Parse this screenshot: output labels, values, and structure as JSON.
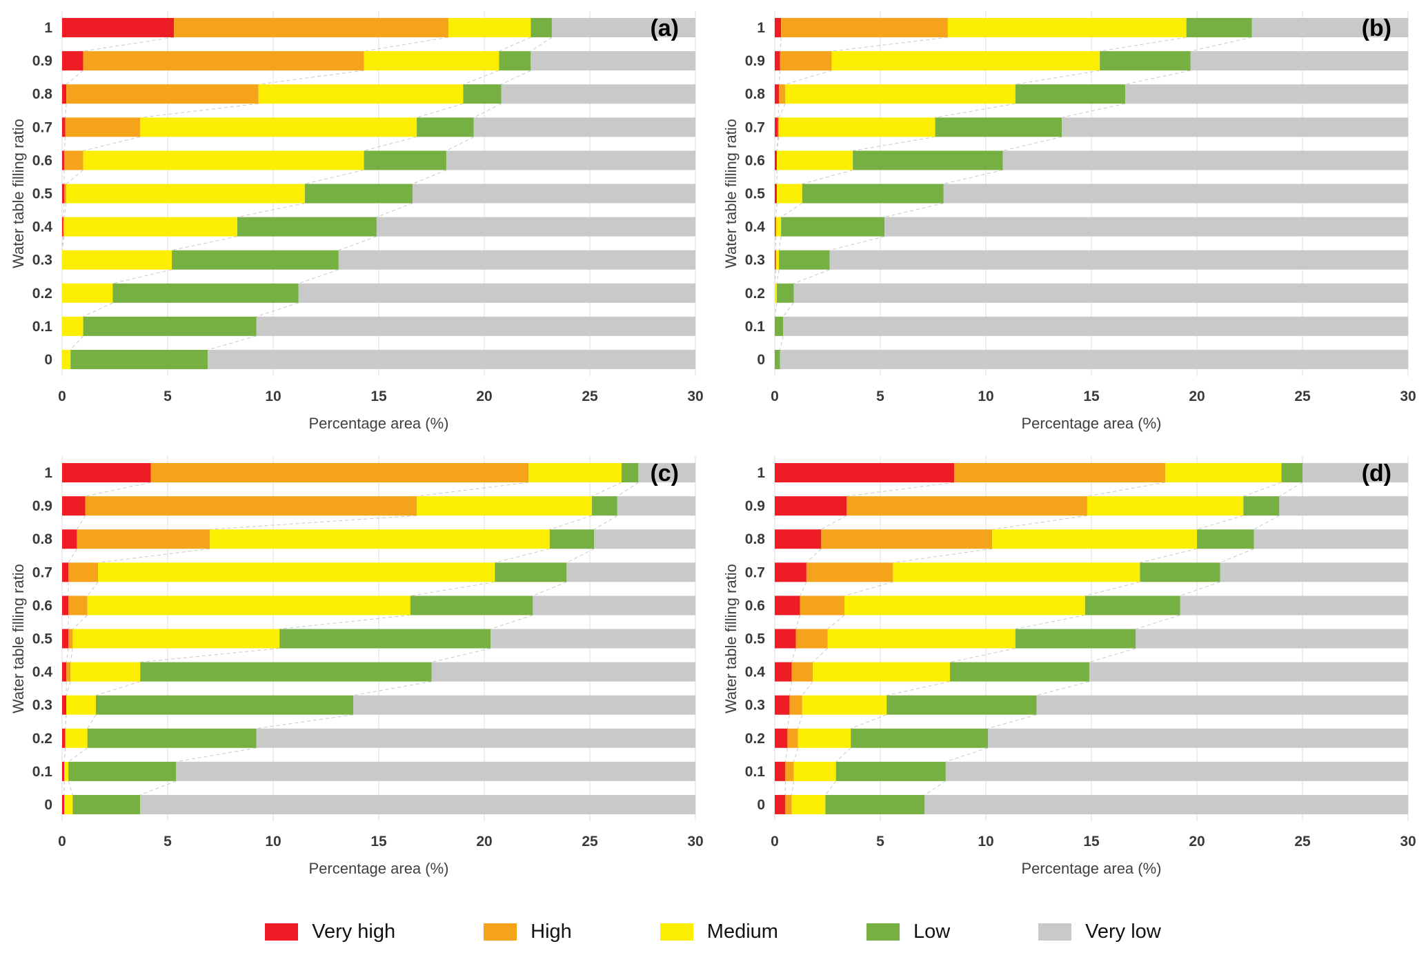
{
  "figure": {
    "background": "#ffffff"
  },
  "legend": {
    "items": [
      {
        "label": "Very high",
        "color": "#ee1c25"
      },
      {
        "label": "High",
        "color": "#f5a31b"
      },
      {
        "label": "Medium",
        "color": "#fbee00"
      },
      {
        "label": "Low",
        "color": "#76b043"
      },
      {
        "label": "Very low",
        "color": "#c9c9c9"
      }
    ]
  },
  "chart_data": [
    {
      "id": "a",
      "panel_label": "(a)",
      "type": "bar",
      "orientation": "horizontal-stacked",
      "title": "",
      "xlabel": "Percentage area (%)",
      "ylabel": "Water table filling ratio",
      "xlim": [
        0,
        30
      ],
      "xticks": [
        0,
        5,
        10,
        15,
        20,
        25,
        30
      ],
      "grid": "vertical",
      "categories": [
        "1",
        "0.9",
        "0.8",
        "0.7",
        "0.6",
        "0.5",
        "0.4",
        "0.3",
        "0.2",
        "0.1",
        "0"
      ],
      "series": [
        {
          "name": "Very high",
          "values": [
            5.3,
            1.0,
            0.2,
            0.15,
            0.1,
            0.1,
            0.05,
            0,
            0,
            0,
            0
          ]
        },
        {
          "name": "High",
          "values": [
            13.0,
            13.3,
            9.1,
            3.55,
            0.9,
            0.1,
            0.05,
            0,
            0,
            0,
            0
          ]
        },
        {
          "name": "Medium",
          "values": [
            3.9,
            6.4,
            9.7,
            13.1,
            13.3,
            11.3,
            8.2,
            5.2,
            2.4,
            1.0,
            0.4
          ]
        },
        {
          "name": "Low",
          "values": [
            1.0,
            1.5,
            1.8,
            2.7,
            3.9,
            5.1,
            6.6,
            7.9,
            8.8,
            8.2,
            6.5
          ]
        },
        {
          "name": "Very low",
          "values": [
            6.8,
            7.8,
            9.2,
            10.5,
            11.8,
            13.4,
            15.1,
            16.9,
            18.8,
            20.8,
            23.1
          ]
        }
      ]
    },
    {
      "id": "b",
      "panel_label": "(b)",
      "type": "bar",
      "orientation": "horizontal-stacked",
      "title": "",
      "xlabel": "Percentage area (%)",
      "ylabel": "Water table filling ratio",
      "xlim": [
        0,
        30
      ],
      "xticks": [
        0,
        5,
        10,
        15,
        20,
        25,
        30
      ],
      "grid": "vertical",
      "categories": [
        "1",
        "0.9",
        "0.8",
        "0.7",
        "0.6",
        "0.5",
        "0.4",
        "0.3",
        "0.2",
        "0.1",
        "0"
      ],
      "series": [
        {
          "name": "Very high",
          "values": [
            0.3,
            0.25,
            0.2,
            0.15,
            0.1,
            0.1,
            0.05,
            0.05,
            0,
            0,
            0
          ]
        },
        {
          "name": "High",
          "values": [
            7.9,
            2.45,
            0.3,
            0.05,
            0,
            0,
            0,
            0,
            0,
            0,
            0
          ]
        },
        {
          "name": "Medium",
          "values": [
            11.3,
            12.7,
            10.9,
            7.4,
            3.6,
            1.2,
            0.25,
            0.15,
            0.1,
            0,
            0
          ]
        },
        {
          "name": "Low",
          "values": [
            3.1,
            4.3,
            5.2,
            6.0,
            7.1,
            6.7,
            4.9,
            2.4,
            0.8,
            0.4,
            0.25
          ]
        },
        {
          "name": "Very low",
          "values": [
            7.4,
            10.3,
            13.4,
            16.4,
            19.2,
            22.0,
            24.8,
            27.4,
            29.1,
            29.6,
            29.75
          ]
        }
      ]
    },
    {
      "id": "c",
      "panel_label": "(c)",
      "type": "bar",
      "orientation": "horizontal-stacked",
      "title": "",
      "xlabel": "Percentage area (%)",
      "ylabel": "Water table filling ratio",
      "xlim": [
        0,
        30
      ],
      "xticks": [
        0,
        5,
        10,
        15,
        20,
        25,
        30
      ],
      "grid": "vertical",
      "categories": [
        "1",
        "0.9",
        "0.8",
        "0.7",
        "0.6",
        "0.5",
        "0.4",
        "0.3",
        "0.2",
        "0.1",
        "0"
      ],
      "series": [
        {
          "name": "Very high",
          "values": [
            4.2,
            1.1,
            0.7,
            0.3,
            0.3,
            0.3,
            0.2,
            0.2,
            0.15,
            0.1,
            0.1
          ]
        },
        {
          "name": "High",
          "values": [
            17.9,
            15.7,
            6.3,
            1.4,
            0.9,
            0.2,
            0.2,
            0,
            0,
            0,
            0
          ]
        },
        {
          "name": "Medium",
          "values": [
            4.4,
            8.3,
            16.1,
            18.8,
            15.3,
            9.8,
            3.3,
            1.4,
            1.05,
            0.2,
            0.4
          ]
        },
        {
          "name": "Low",
          "values": [
            0.8,
            1.2,
            2.1,
            3.4,
            5.8,
            10.0,
            13.8,
            12.2,
            8.0,
            5.1,
            3.2
          ]
        },
        {
          "name": "Very low",
          "values": [
            2.7,
            3.7,
            4.8,
            6.1,
            7.7,
            9.7,
            12.5,
            16.2,
            20.8,
            24.6,
            26.3
          ]
        }
      ]
    },
    {
      "id": "d",
      "panel_label": "(d)",
      "type": "bar",
      "orientation": "horizontal-stacked",
      "title": "",
      "xlabel": "Percentage area (%)",
      "ylabel": "Water table filling ratio",
      "xlim": [
        0,
        30
      ],
      "xticks": [
        0,
        5,
        10,
        15,
        20,
        25,
        30
      ],
      "grid": "vertical",
      "categories": [
        "1",
        "0.9",
        "0.8",
        "0.7",
        "0.6",
        "0.5",
        "0.4",
        "0.3",
        "0.2",
        "0.1",
        "0"
      ],
      "series": [
        {
          "name": "Very high",
          "values": [
            8.5,
            3.4,
            2.2,
            1.5,
            1.2,
            1.0,
            0.8,
            0.7,
            0.6,
            0.5,
            0.5
          ]
        },
        {
          "name": "High",
          "values": [
            10.0,
            11.4,
            8.1,
            4.1,
            2.1,
            1.5,
            1.0,
            0.6,
            0.5,
            0.4,
            0.3
          ]
        },
        {
          "name": "Medium",
          "values": [
            5.5,
            7.4,
            9.7,
            11.7,
            11.4,
            8.9,
            6.5,
            4.0,
            2.5,
            2.0,
            1.6
          ]
        },
        {
          "name": "Low",
          "values": [
            1.0,
            1.7,
            2.7,
            3.8,
            4.5,
            5.7,
            6.6,
            7.1,
            6.5,
            5.2,
            4.7
          ]
        },
        {
          "name": "Very low",
          "values": [
            5.0,
            6.1,
            7.3,
            8.9,
            10.8,
            12.9,
            15.1,
            17.6,
            19.9,
            21.9,
            22.9
          ]
        }
      ]
    }
  ]
}
